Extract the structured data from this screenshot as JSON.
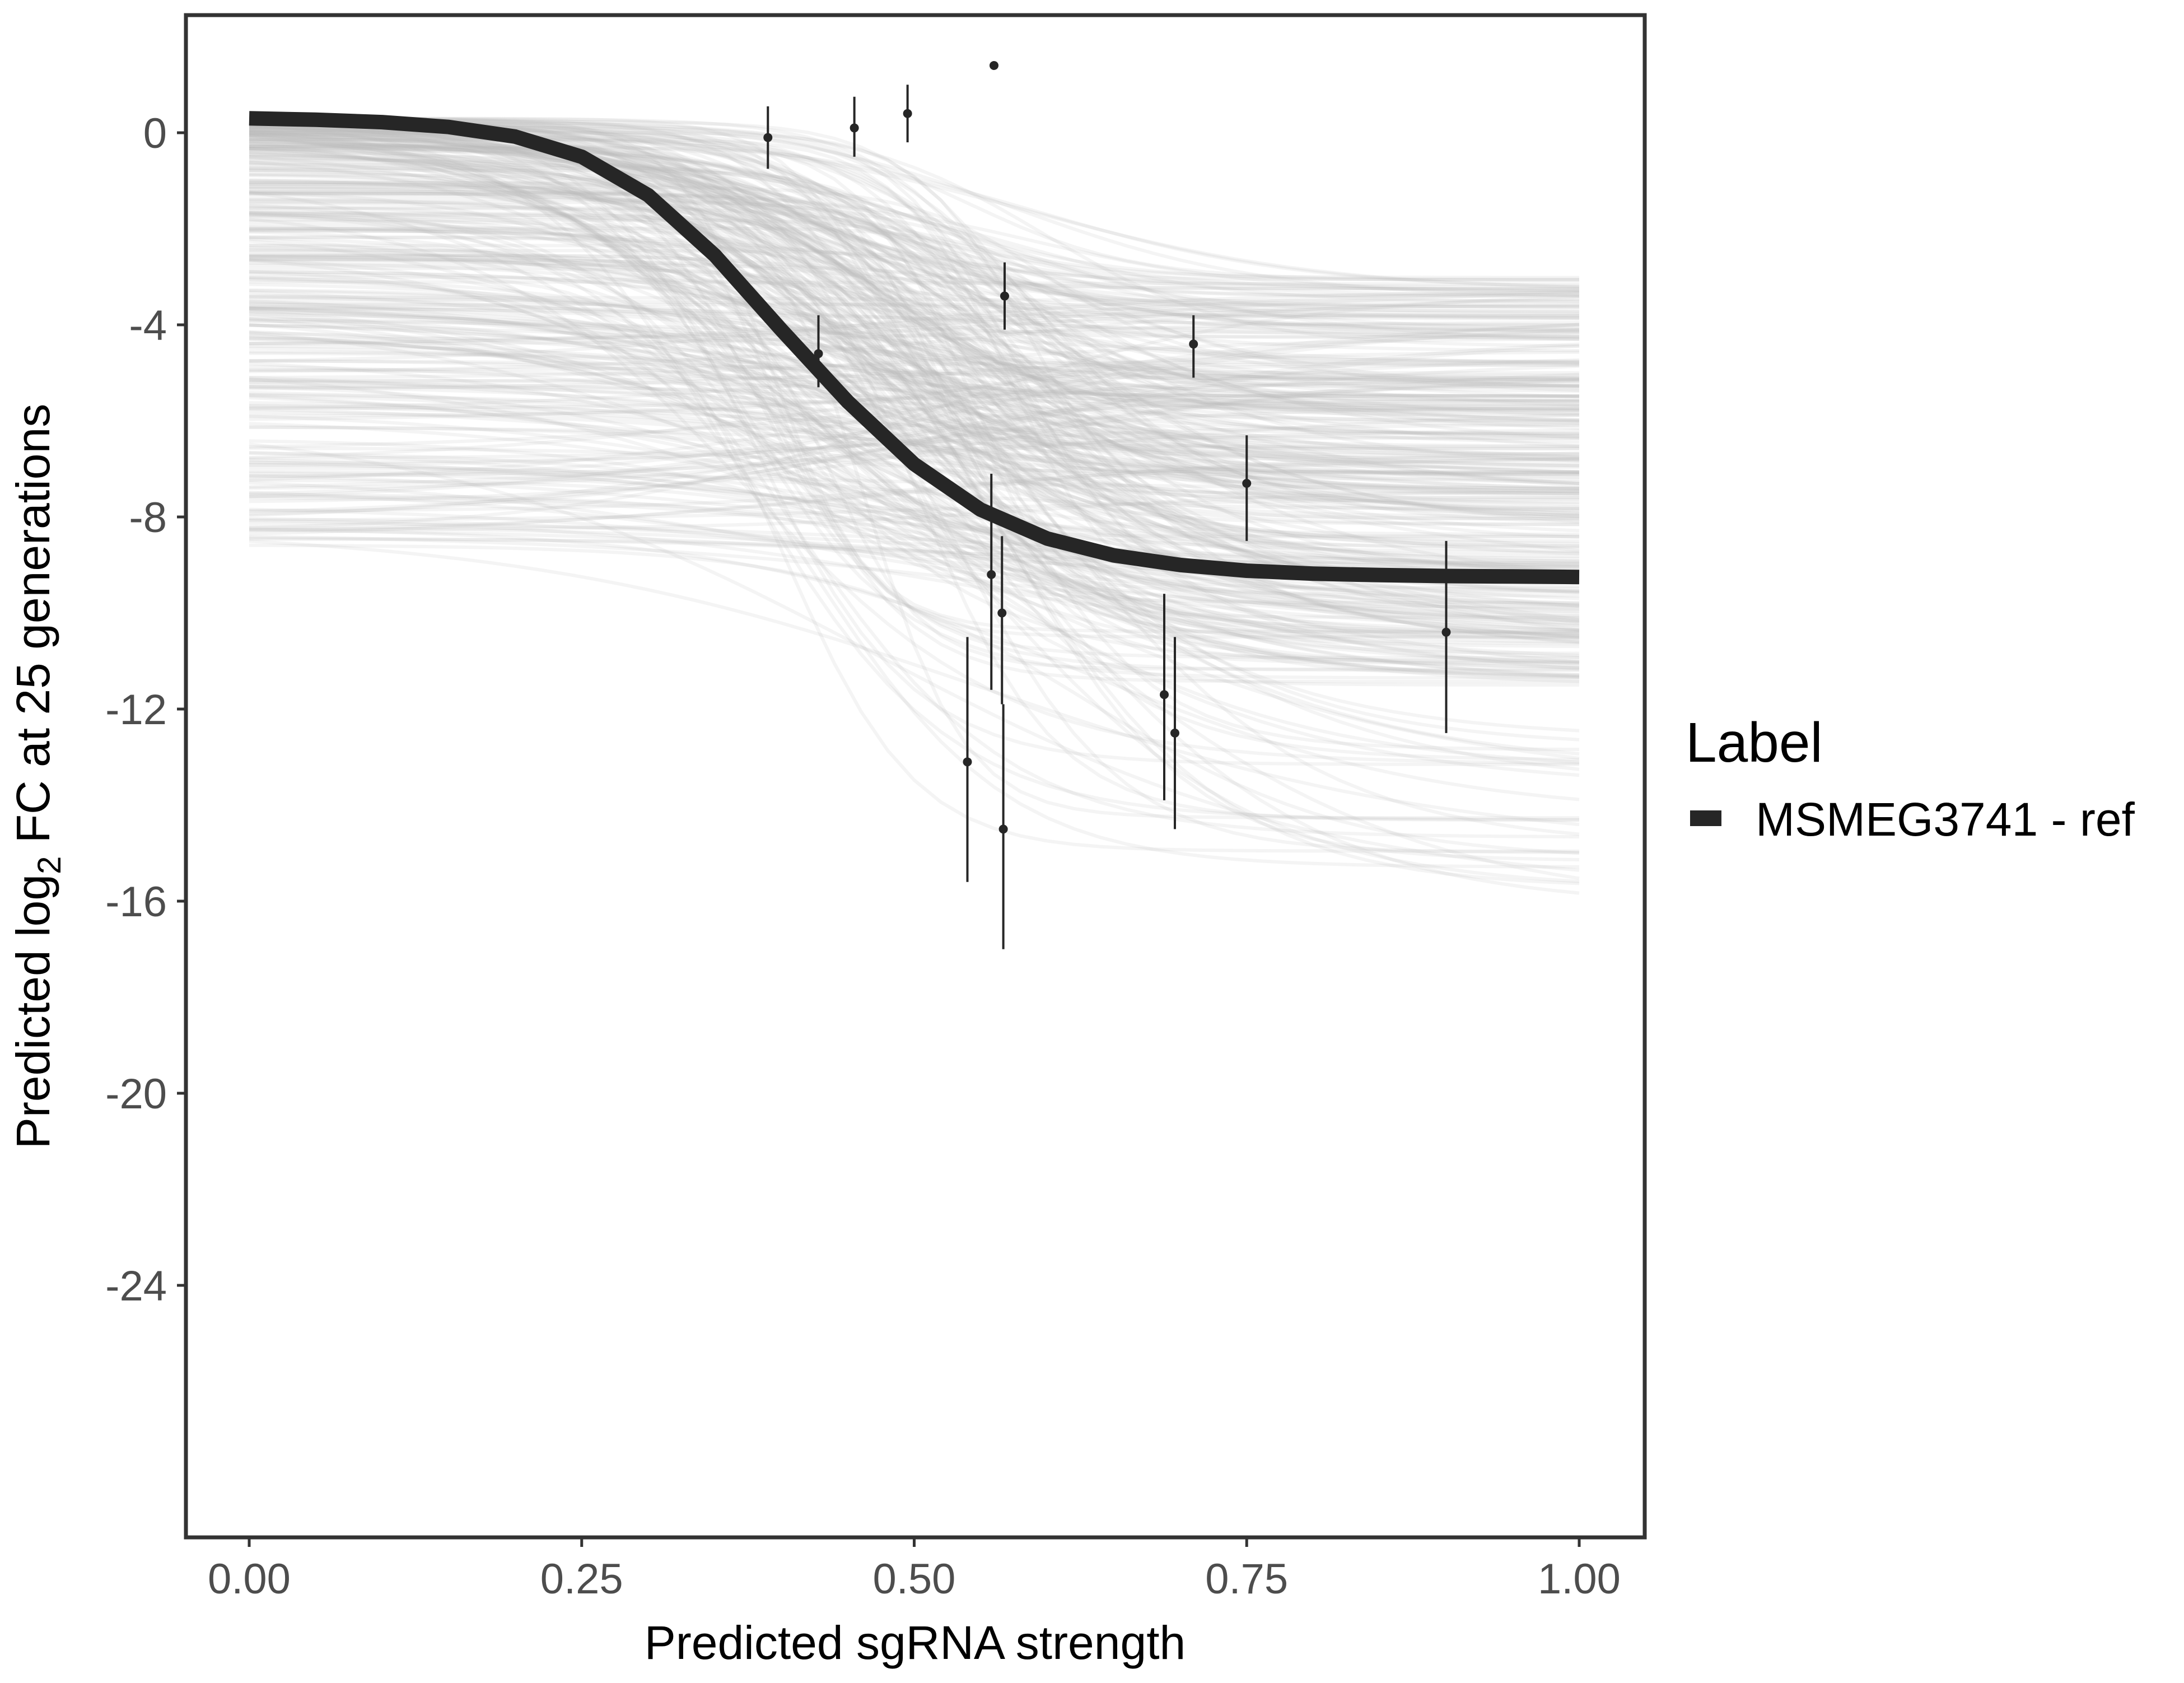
{
  "chart_data": {
    "type": "line",
    "xlabel": "Predicted sgRNA strength",
    "ylabel": {
      "prefix": "Predicted  log",
      "subscript": "2",
      "suffix": " FC at 25 generations"
    },
    "xlim": [
      -0.1,
      2.09
    ],
    "ylim": [
      -29.8,
      2.4
    ],
    "x_ticks": [
      {
        "value": 0.0,
        "label": "0.00"
      },
      {
        "value": 0.25,
        "label": "0.25"
      },
      {
        "value": 0.5,
        "label": "0.50"
      },
      {
        "value": 0.75,
        "label": "0.75"
      },
      {
        "value": 1.0,
        "label": "1.00"
      }
    ],
    "y_ticks": [
      {
        "value": 0,
        "label": "0"
      },
      {
        "value": -4,
        "label": "-4"
      },
      {
        "value": -8,
        "label": "-8"
      },
      {
        "value": -12,
        "label": "-12"
      },
      {
        "value": -16,
        "label": "-16"
      },
      {
        "value": -20,
        "label": "-20"
      },
      {
        "value": -24,
        "label": "-24"
      }
    ],
    "grid": false,
    "legend": {
      "title": "Label",
      "placement": "right",
      "entries": [
        {
          "label": "MSMEG3741 - ref",
          "color": "#262626"
        }
      ]
    },
    "fit_curve": {
      "name": "MSMEG3741 - ref",
      "color": "#262626",
      "x": [
        0.0,
        0.05,
        0.1,
        0.15,
        0.2,
        0.25,
        0.3,
        0.35,
        0.4,
        0.43,
        0.45,
        0.5,
        0.55,
        0.6,
        0.65,
        0.7,
        0.75,
        0.8,
        0.85,
        0.9,
        0.95,
        1.0
      ],
      "y": [
        0.3,
        0.27,
        0.22,
        0.12,
        -0.08,
        -0.5,
        -1.3,
        -2.55,
        -4.1,
        -5.0,
        -5.6,
        -6.9,
        -7.85,
        -8.45,
        -8.8,
        -9.0,
        -9.12,
        -9.18,
        -9.21,
        -9.23,
        -9.24,
        -9.25
      ]
    },
    "posterior_draws": {
      "count": 360,
      "color": "#bdbdbd",
      "opacity": 0.16,
      "start_range": [
        -8.8,
        0.3
      ],
      "end_range": [
        -16.5,
        -3.0
      ]
    },
    "points": [
      {
        "x": 0.39,
        "y": -0.1,
        "ymin": -0.75,
        "ymax": 0.55
      },
      {
        "x": 0.455,
        "y": 0.1,
        "ymin": -0.5,
        "ymax": 0.75
      },
      {
        "x": 0.495,
        "y": 0.4,
        "ymin": -0.2,
        "ymax": 1.0
      },
      {
        "x": 0.56,
        "y": 1.4,
        "ymin": 1.4,
        "ymax": 1.4
      },
      {
        "x": 0.428,
        "y": -4.6,
        "ymin": -5.3,
        "ymax": -3.8
      },
      {
        "x": 0.568,
        "y": -3.4,
        "ymin": -4.1,
        "ymax": -2.7
      },
      {
        "x": 0.71,
        "y": -4.4,
        "ymin": -5.1,
        "ymax": -3.8
      },
      {
        "x": 0.75,
        "y": -7.3,
        "ymin": -8.5,
        "ymax": -6.3
      },
      {
        "x": 0.558,
        "y": -9.2,
        "ymin": -11.6,
        "ymax": -7.1
      },
      {
        "x": 0.566,
        "y": -10.0,
        "ymin": -11.9,
        "ymax": -8.4
      },
      {
        "x": 0.54,
        "y": -13.1,
        "ymin": -15.6,
        "ymax": -10.5
      },
      {
        "x": 0.567,
        "y": -14.5,
        "ymin": -17.0,
        "ymax": -11.9
      },
      {
        "x": 0.688,
        "y": -11.7,
        "ymin": -13.9,
        "ymax": -9.6
      },
      {
        "x": 0.696,
        "y": -12.5,
        "ymin": -14.5,
        "ymax": -10.5
      },
      {
        "x": 0.9,
        "y": -10.4,
        "ymin": -12.5,
        "ymax": -8.5
      }
    ]
  }
}
